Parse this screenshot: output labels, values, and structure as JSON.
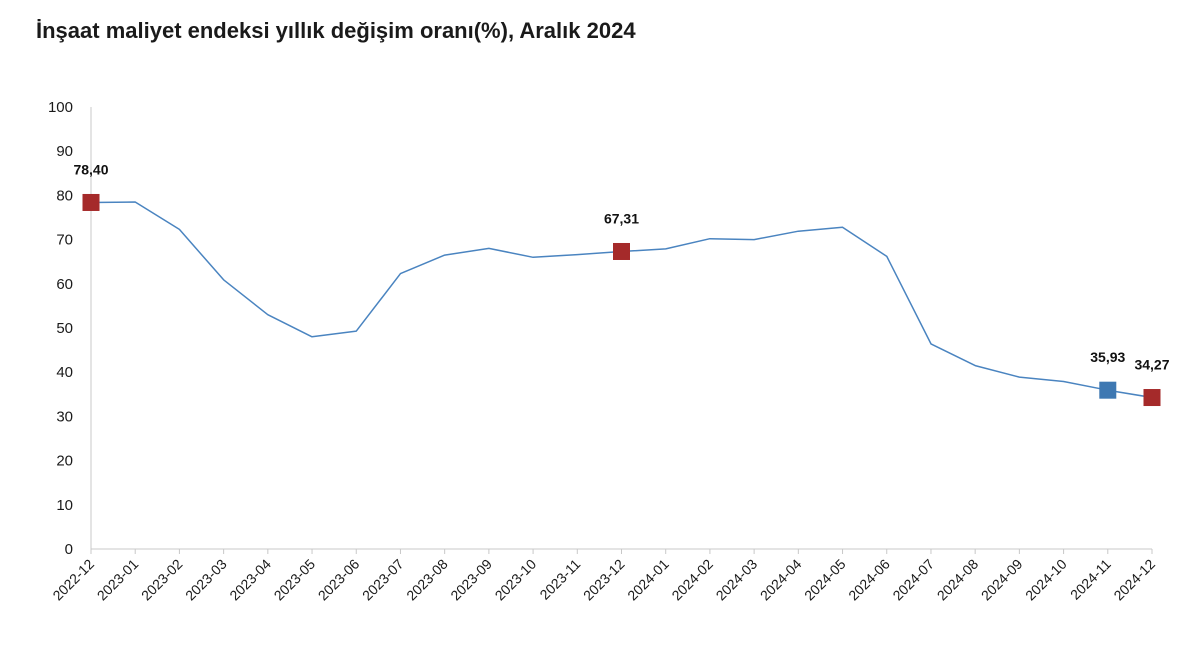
{
  "chart_data": {
    "type": "line",
    "title": "İnşaat maliyet endeksi yıllık değişim oranı(%), Aralık 2024",
    "xlabel": "",
    "ylabel": "",
    "ylim": [
      0,
      100
    ],
    "yticks": [
      0,
      10,
      20,
      30,
      40,
      50,
      60,
      70,
      80,
      90,
      100
    ],
    "grid": false,
    "legend": "none",
    "categories": [
      "2022-12",
      "2023-01",
      "2023-02",
      "2023-03",
      "2023-04",
      "2023-05",
      "2023-06",
      "2023-07",
      "2023-08",
      "2023-09",
      "2023-10",
      "2023-11",
      "2023-12",
      "2024-01",
      "2024-02",
      "2024-03",
      "2024-04",
      "2024-05",
      "2024-06",
      "2024-07",
      "2024-08",
      "2024-09",
      "2024-10",
      "2024-11",
      "2024-12"
    ],
    "series": [
      {
        "values": [
          78.4,
          78.5,
          72.3,
          60.9,
          53.0,
          48.0,
          49.3,
          62.3,
          66.5,
          68.0,
          66.0,
          66.6,
          67.31,
          67.9,
          70.2,
          70.0,
          71.9,
          72.8,
          66.2,
          46.4,
          41.5,
          38.9,
          37.9,
          35.93,
          34.27
        ]
      }
    ],
    "highlights": [
      {
        "index": 0,
        "label": "78,40",
        "color": "#a52a2a"
      },
      {
        "index": 12,
        "label": "67,31",
        "color": "#a52a2a"
      },
      {
        "index": 23,
        "label": "35,93",
        "color": "#3e78b2"
      },
      {
        "index": 24,
        "label": "34,27",
        "color": "#a52a2a"
      }
    ],
    "line_color": "#4a84c0",
    "axis_color": "#c8c8c8"
  }
}
